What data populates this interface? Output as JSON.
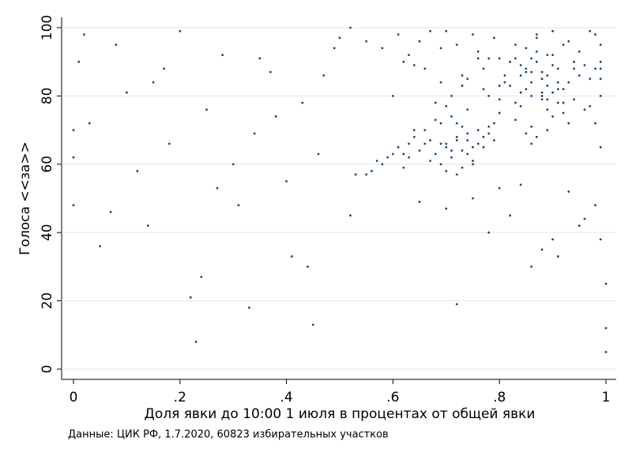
{
  "chart_data": {
    "type": "scatter",
    "x_label": "Доля явки до 10:00 1 июля в процентах от общей явки",
    "y_label": "Голоса <<за>>",
    "note": "Данные: ЦИК РФ, 1.7.2020, 60823 избирательных участков",
    "color": "#1a476f",
    "xlim": [
      0,
      1
    ],
    "xticks": [
      0,
      {
        "value": 0.2,
        "label": ".2"
      },
      {
        "value": 0.4,
        "label": ".4"
      },
      {
        "value": 0.6,
        "label": ".6"
      },
      {
        "value": 0.8,
        "label": ".8"
      },
      1
    ],
    "ylim": [
      0,
      100
    ],
    "yticks": [
      0,
      20,
      40,
      60,
      80,
      100
    ],
    "grid": true,
    "x": [
      0.85,
      0.88,
      0.91,
      0.83,
      0.87,
      0.93,
      0.8,
      0.86,
      0.89,
      0.95,
      0.82,
      0.84,
      0.9,
      0.92,
      0.96,
      0.79,
      0.88,
      0.86,
      0.94,
      0.81,
      0.87,
      0.89,
      0.85,
      0.91,
      0.83,
      0.97,
      0.9,
      0.84,
      0.88,
      0.93,
      0.86,
      0.82,
      0.8,
      0.92,
      0.95,
      0.89,
      0.87,
      0.85,
      0.91,
      0.98,
      0.84,
      0.88,
      0.9,
      0.86,
      0.83,
      0.94,
      0.81,
      0.89,
      0.92,
      0.87,
      0.85,
      0.96,
      0.78,
      0.88,
      0.9,
      0.93,
      0.84,
      0.86,
      0.91,
      0.89,
      0.99,
      0.99,
      0.99,
      0.98,
      0.97,
      0.99,
      0.99,
      0.98,
      0.99,
      0.97,
      0.87,
      0.83,
      0.9,
      0.85,
      0.92,
      0.88,
      0.8,
      0.94,
      0.86,
      0.89,
      0.7,
      0.72,
      0.68,
      0.74,
      0.76,
      0.71,
      0.66,
      0.73,
      0.78,
      0.69,
      0.64,
      0.75,
      0.72,
      0.7,
      0.67,
      0.77,
      0.74,
      0.71,
      0.79,
      0.65,
      0.73,
      0.69,
      0.76,
      0.63,
      0.72,
      0.68,
      0.75,
      0.8,
      0.71,
      0.74,
      0.66,
      0.7,
      0.78,
      0.62,
      0.73,
      0.77,
      0.69,
      0.75,
      0.67,
      0.72,
      0.58,
      0.6,
      0.56,
      0.61,
      0.59,
      0.64,
      0.57,
      0.62,
      0.55,
      0.63,
      0.66,
      0.72,
      0.6,
      0.75,
      0.78,
      0.69,
      0.63,
      0.74,
      0.7,
      0.77,
      0.55,
      0.68,
      0.73,
      0.76,
      0.79,
      0.64,
      0.71,
      0.58,
      0.67,
      0.74,
      0.52,
      0.62,
      0.7,
      0.77,
      0.65,
      0.73,
      0.61,
      0.8,
      0.69,
      0.76,
      0.82,
      0.9,
      0.75,
      0.95,
      0.86,
      0.7,
      0.93,
      0.88,
      0.98,
      0.78,
      1.0,
      1.0,
      1.0,
      0.84,
      0.91,
      0.72,
      0.96,
      0.8,
      0.65,
      0.99,
      0.01,
      0.03,
      0.08,
      0.12,
      0.15,
      0.18,
      0.22,
      0.25,
      0.28,
      0.31,
      0.34,
      0.37,
      0.4,
      0.43,
      0.46,
      0.49,
      0.52,
      0.05,
      0.1,
      0.2,
      0.24,
      0.3,
      0.35,
      0.41,
      0.47,
      0.0,
      0.0,
      0.0,
      0.02,
      0.14,
      0.23,
      0.27,
      0.33,
      0.38,
      0.44,
      0.5,
      0.53,
      0.17,
      0.07,
      0.45
    ],
    "values": [
      82,
      85,
      88,
      78,
      90,
      84,
      75,
      80,
      92,
      86,
      83,
      77,
      81,
      95,
      89,
      72,
      87,
      84,
      79,
      86,
      93,
      76,
      88,
      82,
      91,
      85,
      74,
      89,
      80,
      96,
      71,
      90,
      83,
      78,
      93,
      86,
      97,
      69,
      84,
      88,
      81,
      79,
      92,
      87,
      73,
      90,
      84,
      70,
      82,
      98,
      94,
      76,
      80,
      85,
      89,
      72,
      86,
      91,
      78,
      83,
      95,
      88,
      80,
      72,
      99,
      65,
      90,
      98,
      85,
      77,
      68,
      95,
      99,
      87,
      75,
      81,
      91,
      88,
      66,
      79,
      65,
      67,
      63,
      69,
      66,
      62,
      70,
      64,
      71,
      60,
      68,
      65,
      72,
      66,
      61,
      68,
      63,
      74,
      67,
      64,
      59,
      66,
      70,
      62,
      68,
      73,
      61,
      75,
      64,
      67,
      66,
      58,
      69,
      63,
      71,
      65,
      72,
      60,
      67,
      57,
      60,
      63,
      58,
      65,
      62,
      70,
      61,
      59,
      57,
      66,
      88,
      95,
      80,
      98,
      91,
      84,
      92,
      76,
      99,
      82,
      96,
      78,
      86,
      93,
      97,
      89,
      80,
      94,
      99,
      85,
      100,
      90,
      77,
      88,
      96,
      83,
      98,
      79,
      94,
      91,
      45,
      38,
      50,
      42,
      30,
      47,
      52,
      35,
      48,
      40,
      25,
      12,
      5,
      54,
      33,
      19,
      44,
      53,
      49,
      38,
      90,
      72,
      95,
      58,
      84,
      66,
      21,
      76,
      92,
      48,
      69,
      87,
      55,
      78,
      63,
      94,
      45,
      36,
      81,
      99,
      27,
      60,
      91,
      33,
      86,
      70,
      48,
      62,
      98,
      42,
      8,
      53,
      18,
      74,
      30,
      97,
      57,
      88,
      46,
      13
    ]
  }
}
